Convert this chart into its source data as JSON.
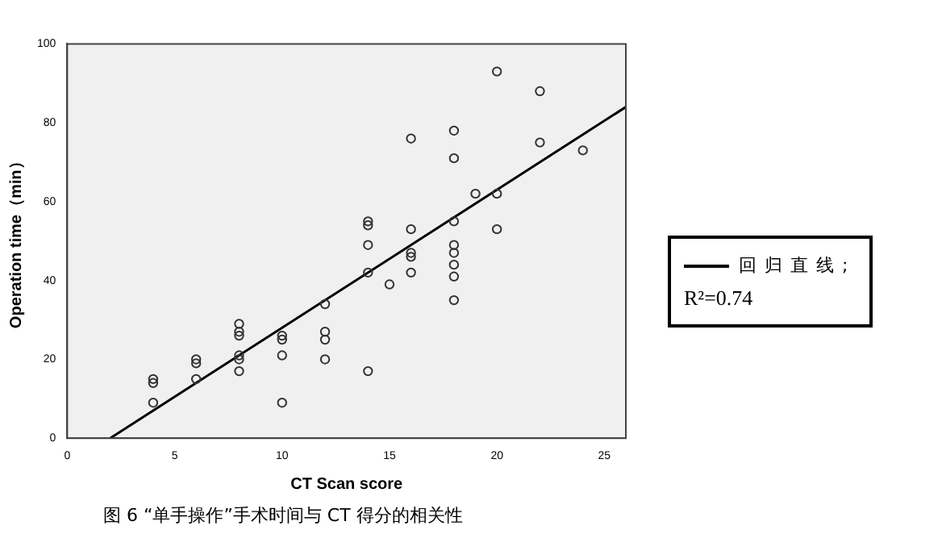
{
  "chart_data": {
    "type": "scatter",
    "title": "图 6 “单手操作”手术时间与 CT 得分的相关性",
    "xlabel": "CT Scan score",
    "ylabel": "Operation time（min）",
    "xlim": [
      0,
      26
    ],
    "xticks": [
      0,
      5,
      10,
      15,
      20,
      25
    ],
    "ylim": [
      0,
      100
    ],
    "yticks": [
      0,
      20,
      40,
      60,
      80,
      100
    ],
    "grid": false,
    "marker": "circle",
    "legend": "right",
    "annotations": [
      "R²=0.74"
    ],
    "series": [
      {
        "color": "#333333",
        "x": [
          4,
          4,
          4,
          6,
          6,
          6,
          8,
          8,
          8,
          8,
          8,
          8,
          10,
          10,
          10,
          10,
          12,
          12,
          12,
          12,
          14,
          14,
          14,
          14,
          14,
          15,
          16,
          16,
          16,
          16,
          16,
          18,
          18,
          18,
          18,
          18,
          18,
          18,
          18,
          19,
          20,
          20,
          20,
          22,
          22,
          24
        ],
        "values": [
          15,
          14,
          9,
          20,
          19,
          15,
          29,
          27,
          26,
          21,
          20,
          17,
          26,
          25,
          21,
          9,
          34,
          27,
          25,
          20,
          55,
          54,
          49,
          42,
          17,
          39,
          76,
          53,
          47,
          46,
          42,
          78,
          71,
          55,
          49,
          47,
          44,
          41,
          35,
          62,
          93,
          62,
          53,
          88,
          75,
          73
        ]
      },
      {
        "type": "line",
        "name": "回归直线;",
        "color": "#000000",
        "marker": "none",
        "x": [
          2,
          26
        ],
        "values": [
          0,
          84
        ]
      }
    ]
  }
}
